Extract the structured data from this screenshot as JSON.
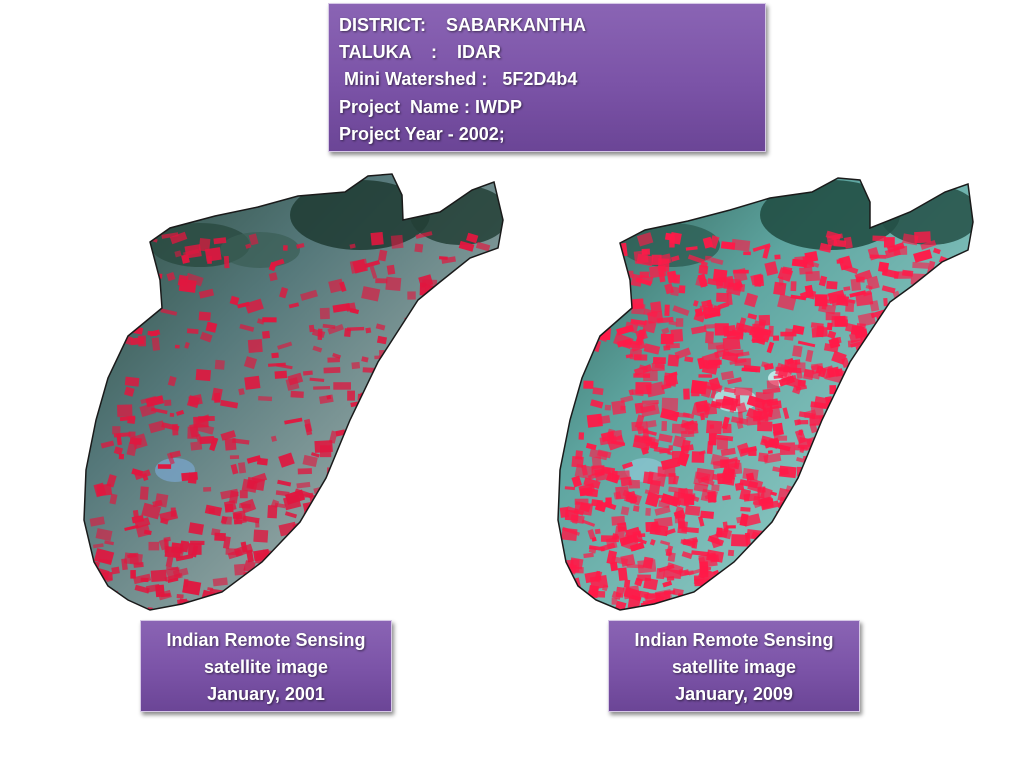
{
  "header": {
    "district_line": "DISTRICT:    SABARKANTHA",
    "taluka_line": "TALUKA    :    IDAR",
    "watershed_line": " Mini Watershed :   5F2D4b4",
    "project_name_line": "Project  Name : IWDP",
    "project_year_line": "Project Year - 2002;"
  },
  "images": [
    {
      "caption_line1": "Indian Remote Sensing",
      "caption_line2": "satellite image",
      "caption_line3": "January, 2001",
      "vegetation_color": "#e0173f"
    },
    {
      "caption_line1": "Indian Remote Sensing",
      "caption_line2": "satellite image",
      "caption_line3": "January, 2009",
      "vegetation_color": "#ff1a48"
    }
  ],
  "colors": {
    "box_purple": "#7b53a7",
    "terrain_dark": "#24443a",
    "terrain_cyan": "#6fb7b2",
    "terrain_light": "#a9c7c7"
  }
}
